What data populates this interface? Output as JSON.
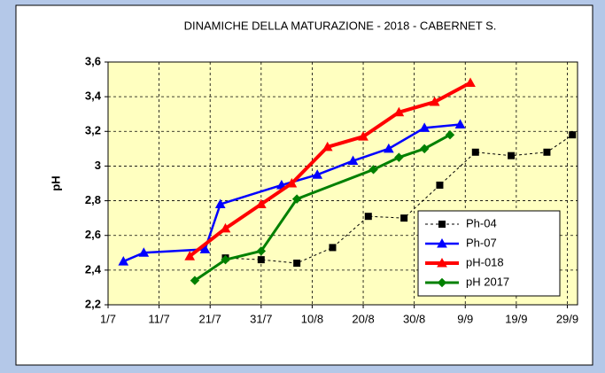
{
  "chart_data": {
    "type": "line",
    "title": "DINAMICHE  DELLA MATURAZIONE  - 2018 - CABERNET S.",
    "y_label": "pH",
    "xlim": [
      "1/7",
      "1/10"
    ],
    "xticks": [
      "1/7",
      "11/7",
      "21/7",
      "31/7",
      "10/8",
      "20/8",
      "30/8",
      "9/9",
      "19/9",
      "29/9"
    ],
    "ylim": [
      2.2,
      3.6
    ],
    "yticks": [
      {
        "value": 2.2,
        "label": "2,2"
      },
      {
        "value": 2.4,
        "label": "2,4"
      },
      {
        "value": 2.6,
        "label": "2,6"
      },
      {
        "value": 2.8,
        "label": "2,8"
      },
      3,
      {
        "value": 3.2,
        "label": "3,2"
      },
      {
        "value": 3.4,
        "label": "3,4"
      },
      {
        "value": 3.6,
        "label": "3,6"
      }
    ],
    "grid": true,
    "legend": "lower right",
    "series": [
      {
        "name": "Ph-04",
        "color": "#000000",
        "marker": "square",
        "line_style": "dashed",
        "width": 1,
        "x": [
          "24/7",
          "31/7",
          "7/8",
          "14/8",
          "21/8",
          "28/8",
          "4/9",
          "11/9",
          "18/9",
          "25/9",
          "30/9"
        ],
        "values": [
          2.47,
          2.46,
          2.44,
          2.53,
          2.71,
          2.7,
          2.89,
          3.08,
          3.06,
          3.08,
          3.18
        ]
      },
      {
        "name": "Ph-07",
        "color": "#0000ff",
        "marker": "triangle",
        "line_style": "solid",
        "width": 2.5,
        "x": [
          "4/7",
          "8/7",
          "20/7",
          "23/7",
          "4/8",
          "11/8",
          "18/8",
          "25/8",
          "1/9",
          "8/9"
        ],
        "values": [
          2.45,
          2.5,
          2.52,
          2.78,
          2.89,
          2.95,
          3.03,
          3.1,
          3.22,
          3.24
        ]
      },
      {
        "name": "pH-018",
        "color": "#ff0000",
        "marker": "triangle",
        "line_style": "solid",
        "width": 4,
        "x": [
          "17/7",
          "24/7",
          "31/7",
          "6/8",
          "13/8",
          "20/8",
          "27/8",
          "3/9",
          "10/9"
        ],
        "values": [
          2.48,
          2.64,
          2.78,
          2.9,
          3.11,
          3.17,
          3.31,
          3.37,
          3.48
        ]
      },
      {
        "name": "pH 2017",
        "color": "#008000",
        "marker": "diamond",
        "line_style": "solid",
        "width": 3,
        "x": [
          "18/7",
          "24/7",
          "31/7",
          "7/8",
          "22/8",
          "27/8",
          "1/9",
          "6/9"
        ],
        "values": [
          2.34,
          2.46,
          2.51,
          2.81,
          2.98,
          3.05,
          3.1,
          3.18
        ]
      }
    ]
  }
}
